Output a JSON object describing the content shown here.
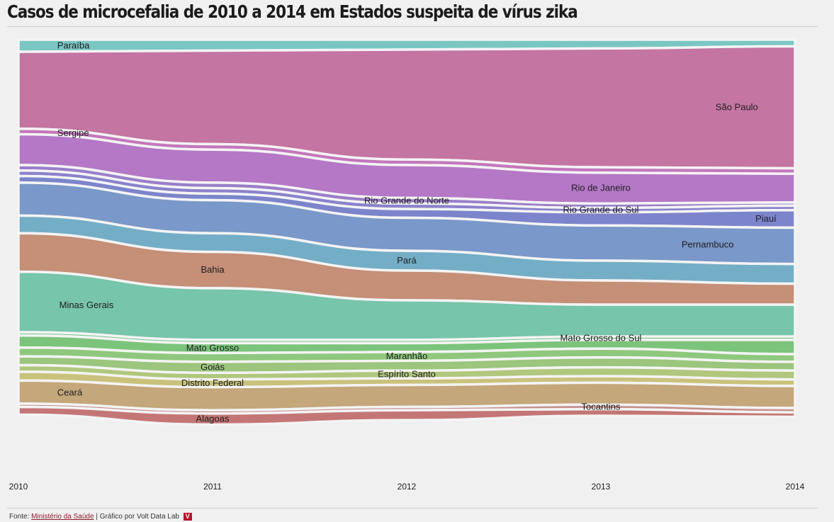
{
  "title": "Casos de microcefalia de 2010 a 2014 em Estados suspeita de vírus zika",
  "footer": {
    "source_prefix": "Fonte:",
    "source_link": "Ministério da Saúde",
    "separator": "|",
    "credit": "Gráfico por Volt Data Lab",
    "logo_letter": "V"
  },
  "chart_data": {
    "type": "area",
    "x": [
      "2010",
      "2011",
      "2012",
      "2013",
      "2014"
    ],
    "total_per_year": [
      4.0,
      4.0,
      4.0,
      4.0,
      4.0
    ],
    "grid": false,
    "legend": "inline",
    "series": [
      {
        "name": "Paraíba",
        "color": "#7ac6c2",
        "values": [
          0.11,
          0.1,
          0.09,
          0.08,
          0.06
        ]
      },
      {
        "name": "São Paulo",
        "color": "#c475a2",
        "values": [
          0.7,
          0.85,
          1.0,
          1.08,
          1.11
        ]
      },
      {
        "name": "Sergipe",
        "color": "#c477bc",
        "values": [
          0.05,
          0.05,
          0.05,
          0.05,
          0.05
        ]
      },
      {
        "name": "Rio de Janeiro",
        "color": "#b478c6",
        "values": [
          0.28,
          0.3,
          0.3,
          0.28,
          0.26
        ]
      },
      {
        "name": "Rio Grande do Norte",
        "color": "#9a7ec9",
        "values": [
          0.05,
          0.05,
          0.05,
          0.04,
          0.03
        ]
      },
      {
        "name": "Rio Grande do Sul",
        "color": "#8a82cb",
        "values": [
          0.05,
          0.05,
          0.05,
          0.04,
          0.04
        ]
      },
      {
        "name": "Piauí",
        "color": "#7c85cb",
        "values": [
          0.06,
          0.06,
          0.08,
          0.12,
          0.16
        ]
      },
      {
        "name": "Pernambuco",
        "color": "#7a98c9",
        "values": [
          0.3,
          0.3,
          0.3,
          0.32,
          0.33
        ]
      },
      {
        "name": "Pará",
        "color": "#74aec6",
        "values": [
          0.16,
          0.17,
          0.18,
          0.18,
          0.18
        ]
      },
      {
        "name": "Bahia",
        "color": "#c58f78",
        "values": [
          0.35,
          0.33,
          0.27,
          0.22,
          0.19
        ]
      },
      {
        "name": "Minas Gerais",
        "color": "#77c5aa",
        "values": [
          0.55,
          0.47,
          0.36,
          0.29,
          0.29
        ]
      },
      {
        "name": "Mato Grosso do Sul",
        "color": "#7fc58f",
        "values": [
          0.03,
          0.03,
          0.03,
          0.03,
          0.03
        ]
      },
      {
        "name": "Mato Grosso",
        "color": "#7cc47c",
        "values": [
          0.11,
          0.09,
          0.08,
          0.08,
          0.13
        ]
      },
      {
        "name": "Maranhão",
        "color": "#8ec87d",
        "values": [
          0.08,
          0.08,
          0.08,
          0.08,
          0.07
        ]
      },
      {
        "name": "Goiás",
        "color": "#9cc57d",
        "values": [
          0.08,
          0.1,
          0.09,
          0.09,
          0.08
        ]
      },
      {
        "name": "Espírito Santo",
        "color": "#b0c77d",
        "values": [
          0.06,
          0.06,
          0.07,
          0.08,
          0.08
        ]
      },
      {
        "name": "Distrito Federal",
        "color": "#c9c27c",
        "values": [
          0.08,
          0.07,
          0.06,
          0.06,
          0.06
        ]
      },
      {
        "name": "Ceará",
        "color": "#c4a77a",
        "values": [
          0.21,
          0.21,
          0.2,
          0.2,
          0.2
        ]
      },
      {
        "name": "Tocantins",
        "color": "#c58f8f",
        "values": [
          0.03,
          0.03,
          0.03,
          0.04,
          0.04
        ]
      },
      {
        "name": "Alagoas",
        "color": "#c47676",
        "values": [
          0.07,
          0.1,
          0.09,
          0.06,
          0.04
        ]
      }
    ],
    "inline_labels": [
      {
        "series": "Paraíba",
        "x_index": 0.2
      },
      {
        "series": "São Paulo",
        "x_index": 3.7
      },
      {
        "series": "Sergipe",
        "x_index": 0.2
      },
      {
        "series": "Rio de Janeiro",
        "x_index": 3.0
      },
      {
        "series": "Rio Grande do Norte",
        "x_index": 2.0
      },
      {
        "series": "Rio Grande do Sul",
        "x_index": 3.0
      },
      {
        "series": "Piauí",
        "x_index": 3.85
      },
      {
        "series": "Pernambuco",
        "x_index": 3.55
      },
      {
        "series": "Pará",
        "x_index": 2.0
      },
      {
        "series": "Bahia",
        "x_index": 1.0
      },
      {
        "series": "Minas Gerais",
        "x_index": 0.35
      },
      {
        "series": "Mato Grosso do Sul",
        "x_index": 3.0
      },
      {
        "series": "Mato Grosso",
        "x_index": 1.0
      },
      {
        "series": "Maranhão",
        "x_index": 2.0
      },
      {
        "series": "Goiás",
        "x_index": 1.0
      },
      {
        "series": "Espírito Santo",
        "x_index": 2.0
      },
      {
        "series": "Distrito Federal",
        "x_index": 1.0
      },
      {
        "series": "Ceará",
        "x_index": 0.2
      },
      {
        "series": "Tocantins",
        "x_index": 3.0
      },
      {
        "series": "Alagoas",
        "x_index": 1.0
      }
    ]
  }
}
